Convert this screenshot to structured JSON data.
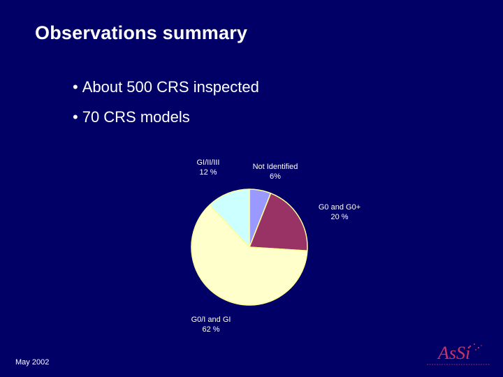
{
  "slide": {
    "title": "Observations summary",
    "bullets": [
      {
        "marker": "•",
        "text": "About 500 CRS inspected"
      },
      {
        "marker": "•",
        "text": "70 CRS models"
      }
    ],
    "footer_date": "May 2002",
    "logo_text": "AsSi"
  },
  "chart_data": {
    "type": "pie",
    "title": "",
    "start_angle_deg": 0,
    "direction": "clockwise",
    "slices": [
      {
        "name": "Not Identified",
        "label_lines": [
          "Not Identified",
          "6%"
        ],
        "value": 6,
        "color": "#9999ff"
      },
      {
        "name": "G0 and G0+",
        "label_lines": [
          "G0 and G0+",
          "20 %"
        ],
        "value": 20,
        "color": "#993366"
      },
      {
        "name": "G0/I and GI",
        "label_lines": [
          "G0/I and GI",
          "62 %"
        ],
        "value": 62,
        "color": "#ffffcc"
      },
      {
        "name": "GI/II/III",
        "label_lines": [
          "GI/II/III",
          "12 %"
        ],
        "value": 12,
        "color": "#ccffff"
      }
    ],
    "edge_color": "#ffff99"
  }
}
